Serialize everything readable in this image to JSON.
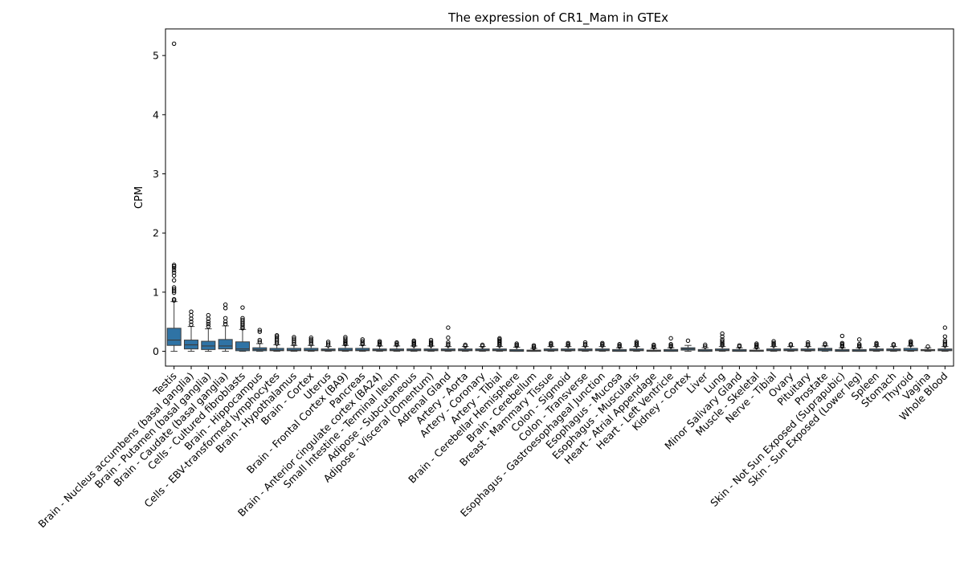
{
  "chart_data": {
    "type": "box",
    "title": "The expression of CR1_Mam in GTEx",
    "xlabel": "",
    "ylabel": "CPM",
    "ylim": [
      -0.25,
      5.45
    ],
    "yticks": [
      0,
      1,
      2,
      3,
      4,
      5
    ],
    "grid": false,
    "box_color": "#2f73a5",
    "categories": [
      "Testis",
      "Brain - Nucleus accumbens (basal ganglia)",
      "Brain - Putamen (basal ganglia)",
      "Brain - Caudate (basal ganglia)",
      "Cells - Cultured fibroblasts",
      "Brain - Hippocampus",
      "Cells - EBV-transformed lymphocytes",
      "Brain - Hypothalamus",
      "Brain - Cortex",
      "Uterus",
      "Brain - Frontal Cortex (BA9)",
      "Pancreas",
      "Brain - Anterior cingulate cortex (BA24)",
      "Small Intestine - Terminal Ileum",
      "Adipose - Subcutaneous",
      "Adipose - Visceral (Omentum)",
      "Adrenal Gland",
      "Artery - Aorta",
      "Artery - Coronary",
      "Artery - Tibial",
      "Brain - Cerebellar Hemisphere",
      "Brain - Cerebellum",
      "Breast - Mammary Tissue",
      "Colon - Sigmoid",
      "Colon - Transverse",
      "Esophagus - Gastroesophageal Junction",
      "Esophagus - Mucosa",
      "Esophagus - Muscularis",
      "Heart - Atrial Appendage",
      "Heart - Left Ventricle",
      "Kidney - Cortex",
      "Liver",
      "Lung",
      "Minor Salivary Gland",
      "Muscle - Skeletal",
      "Nerve - Tibial",
      "Ovary",
      "Pituitary",
      "Prostate",
      "Skin - Not Sun Exposed (Suprapubic)",
      "Skin - Sun Exposed (Lower leg)",
      "Spleen",
      "Stomach",
      "Thyroid",
      "Vagina",
      "Whole Blood"
    ],
    "boxes": [
      {
        "whislo": 0.0,
        "q1": 0.1,
        "med": 0.19,
        "q3": 0.39,
        "whishi": 0.84,
        "fliers": [
          0.86,
          0.88,
          0.99,
          1.02,
          1.05,
          1.08,
          1.2,
          1.28,
          1.33,
          1.37,
          1.41,
          1.44,
          1.46,
          5.2
        ]
      },
      {
        "whislo": 0.0,
        "q1": 0.04,
        "med": 0.11,
        "q3": 0.19,
        "whishi": 0.42,
        "fliers": [
          0.45,
          0.5,
          0.55,
          0.61,
          0.67
        ]
      },
      {
        "whislo": 0.0,
        "q1": 0.03,
        "med": 0.09,
        "q3": 0.17,
        "whishi": 0.38,
        "fliers": [
          0.42,
          0.46,
          0.5,
          0.55,
          0.61
        ]
      },
      {
        "whislo": 0.0,
        "q1": 0.04,
        "med": 0.09,
        "q3": 0.2,
        "whishi": 0.43,
        "fliers": [
          0.46,
          0.5,
          0.56,
          0.73,
          0.79
        ]
      },
      {
        "whislo": 0.0,
        "q1": 0.01,
        "med": 0.04,
        "q3": 0.16,
        "whishi": 0.37,
        "fliers": [
          0.39,
          0.41,
          0.44,
          0.47,
          0.5,
          0.53,
          0.56,
          0.74
        ]
      },
      {
        "whislo": 0.0,
        "q1": 0.01,
        "med": 0.03,
        "q3": 0.06,
        "whishi": 0.13,
        "fliers": [
          0.16,
          0.19,
          0.33,
          0.36
        ]
      },
      {
        "whislo": 0.0,
        "q1": 0.01,
        "med": 0.02,
        "q3": 0.05,
        "whishi": 0.11,
        "fliers": [
          0.13,
          0.16,
          0.19,
          0.22,
          0.25,
          0.27
        ]
      },
      {
        "whislo": 0.0,
        "q1": 0.01,
        "med": 0.02,
        "q3": 0.05,
        "whishi": 0.1,
        "fliers": [
          0.12,
          0.15,
          0.18,
          0.21,
          0.24
        ]
      },
      {
        "whislo": 0.0,
        "q1": 0.01,
        "med": 0.02,
        "q3": 0.05,
        "whishi": 0.1,
        "fliers": [
          0.12,
          0.15,
          0.18,
          0.2,
          0.23
        ]
      },
      {
        "whislo": 0.0,
        "q1": 0.01,
        "med": 0.02,
        "q3": 0.04,
        "whishi": 0.08,
        "fliers": [
          0.1,
          0.13,
          0.16
        ]
      },
      {
        "whislo": 0.0,
        "q1": 0.01,
        "med": 0.02,
        "q3": 0.05,
        "whishi": 0.1,
        "fliers": [
          0.12,
          0.14,
          0.16,
          0.18,
          0.21,
          0.24
        ]
      },
      {
        "whislo": 0.0,
        "q1": 0.01,
        "med": 0.02,
        "q3": 0.05,
        "whishi": 0.1,
        "fliers": [
          0.12,
          0.14,
          0.17,
          0.2
        ]
      },
      {
        "whislo": 0.0,
        "q1": 0.01,
        "med": 0.02,
        "q3": 0.04,
        "whishi": 0.09,
        "fliers": [
          0.11,
          0.13,
          0.15,
          0.17
        ]
      },
      {
        "whislo": 0.0,
        "q1": 0.01,
        "med": 0.02,
        "q3": 0.04,
        "whishi": 0.09,
        "fliers": [
          0.11,
          0.13,
          0.15
        ]
      },
      {
        "whislo": 0.0,
        "q1": 0.01,
        "med": 0.02,
        "q3": 0.04,
        "whishi": 0.09,
        "fliers": [
          0.1,
          0.12,
          0.14,
          0.16,
          0.18
        ]
      },
      {
        "whislo": 0.0,
        "q1": 0.01,
        "med": 0.02,
        "q3": 0.04,
        "whishi": 0.09,
        "fliers": [
          0.1,
          0.12,
          0.14,
          0.16,
          0.19
        ]
      },
      {
        "whislo": 0.0,
        "q1": 0.01,
        "med": 0.02,
        "q3": 0.04,
        "whishi": 0.08,
        "fliers": [
          0.1,
          0.12,
          0.15,
          0.23,
          0.4
        ]
      },
      {
        "whislo": 0.0,
        "q1": 0.01,
        "med": 0.02,
        "q3": 0.04,
        "whishi": 0.08,
        "fliers": [
          0.09,
          0.11
        ]
      },
      {
        "whislo": 0.0,
        "q1": 0.01,
        "med": 0.02,
        "q3": 0.04,
        "whishi": 0.08,
        "fliers": [
          0.09,
          0.11
        ]
      },
      {
        "whislo": 0.0,
        "q1": 0.01,
        "med": 0.02,
        "q3": 0.04,
        "whishi": 0.08,
        "fliers": [
          0.1,
          0.12,
          0.14,
          0.16,
          0.18,
          0.2,
          0.22
        ]
      },
      {
        "whislo": 0.0,
        "q1": 0.0,
        "med": 0.01,
        "q3": 0.03,
        "whishi": 0.07,
        "fliers": [
          0.09,
          0.11,
          0.13
        ]
      },
      {
        "whislo": 0.0,
        "q1": 0.0,
        "med": 0.01,
        "q3": 0.02,
        "whishi": 0.05,
        "fliers": [
          0.06,
          0.08,
          0.1
        ]
      },
      {
        "whislo": 0.0,
        "q1": 0.01,
        "med": 0.02,
        "q3": 0.04,
        "whishi": 0.08,
        "fliers": [
          0.1,
          0.12,
          0.14
        ]
      },
      {
        "whislo": 0.0,
        "q1": 0.01,
        "med": 0.02,
        "q3": 0.04,
        "whishi": 0.08,
        "fliers": [
          0.1,
          0.12,
          0.14
        ]
      },
      {
        "whislo": 0.0,
        "q1": 0.01,
        "med": 0.02,
        "q3": 0.04,
        "whishi": 0.08,
        "fliers": [
          0.1,
          0.12,
          0.15
        ]
      },
      {
        "whislo": 0.0,
        "q1": 0.01,
        "med": 0.02,
        "q3": 0.04,
        "whishi": 0.08,
        "fliers": [
          0.1,
          0.12,
          0.14
        ]
      },
      {
        "whislo": 0.0,
        "q1": 0.0,
        "med": 0.01,
        "q3": 0.03,
        "whishi": 0.06,
        "fliers": [
          0.08,
          0.1,
          0.12
        ]
      },
      {
        "whislo": 0.0,
        "q1": 0.01,
        "med": 0.02,
        "q3": 0.04,
        "whishi": 0.08,
        "fliers": [
          0.1,
          0.12,
          0.14,
          0.16
        ]
      },
      {
        "whislo": 0.0,
        "q1": 0.0,
        "med": 0.01,
        "q3": 0.02,
        "whishi": 0.05,
        "fliers": [
          0.07,
          0.09,
          0.11
        ]
      },
      {
        "whislo": 0.0,
        "q1": 0.0,
        "med": 0.01,
        "q3": 0.03,
        "whishi": 0.06,
        "fliers": [
          0.08,
          0.1,
          0.12,
          0.22
        ]
      },
      {
        "whislo": 0.0,
        "q1": 0.02,
        "med": 0.04,
        "q3": 0.06,
        "whishi": 0.1,
        "fliers": [
          0.18
        ]
      },
      {
        "whislo": 0.0,
        "q1": 0.0,
        "med": 0.01,
        "q3": 0.03,
        "whishi": 0.06,
        "fliers": [
          0.08,
          0.11
        ]
      },
      {
        "whislo": 0.0,
        "q1": 0.01,
        "med": 0.02,
        "q3": 0.04,
        "whishi": 0.08,
        "fliers": [
          0.1,
          0.12,
          0.14,
          0.17,
          0.2,
          0.25,
          0.3
        ]
      },
      {
        "whislo": 0.0,
        "q1": 0.0,
        "med": 0.01,
        "q3": 0.03,
        "whishi": 0.06,
        "fliers": [
          0.08,
          0.1
        ]
      },
      {
        "whislo": 0.0,
        "q1": 0.0,
        "med": 0.01,
        "q3": 0.02,
        "whishi": 0.05,
        "fliers": [
          0.07,
          0.09,
          0.11,
          0.13
        ]
      },
      {
        "whislo": 0.0,
        "q1": 0.01,
        "med": 0.02,
        "q3": 0.04,
        "whishi": 0.08,
        "fliers": [
          0.1,
          0.12,
          0.14,
          0.17
        ]
      },
      {
        "whislo": 0.0,
        "q1": 0.01,
        "med": 0.02,
        "q3": 0.04,
        "whishi": 0.08,
        "fliers": [
          0.1,
          0.12
        ]
      },
      {
        "whislo": 0.0,
        "q1": 0.01,
        "med": 0.02,
        "q3": 0.04,
        "whishi": 0.08,
        "fliers": [
          0.1,
          0.12,
          0.15
        ]
      },
      {
        "whislo": 0.0,
        "q1": 0.01,
        "med": 0.03,
        "q3": 0.05,
        "whishi": 0.09,
        "fliers": [
          0.11,
          0.13
        ]
      },
      {
        "whislo": 0.0,
        "q1": 0.0,
        "med": 0.01,
        "q3": 0.03,
        "whishi": 0.06,
        "fliers": [
          0.08,
          0.1,
          0.12,
          0.14,
          0.26
        ]
      },
      {
        "whislo": 0.0,
        "q1": 0.0,
        "med": 0.01,
        "q3": 0.03,
        "whishi": 0.06,
        "fliers": [
          0.08,
          0.1,
          0.12,
          0.2
        ]
      },
      {
        "whislo": 0.0,
        "q1": 0.01,
        "med": 0.02,
        "q3": 0.04,
        "whishi": 0.08,
        "fliers": [
          0.1,
          0.12,
          0.14
        ]
      },
      {
        "whislo": 0.0,
        "q1": 0.01,
        "med": 0.02,
        "q3": 0.04,
        "whishi": 0.08,
        "fliers": [
          0.1,
          0.12
        ]
      },
      {
        "whislo": 0.0,
        "q1": 0.01,
        "med": 0.02,
        "q3": 0.05,
        "whishi": 0.09,
        "fliers": [
          0.11,
          0.13,
          0.15,
          0.17
        ]
      },
      {
        "whislo": 0.0,
        "q1": 0.01,
        "med": 0.02,
        "q3": 0.03,
        "whishi": 0.06,
        "fliers": [
          0.08
        ]
      },
      {
        "whislo": 0.0,
        "q1": 0.01,
        "med": 0.02,
        "q3": 0.04,
        "whishi": 0.08,
        "fliers": [
          0.1,
          0.12,
          0.15,
          0.18,
          0.25,
          0.4
        ]
      }
    ]
  }
}
